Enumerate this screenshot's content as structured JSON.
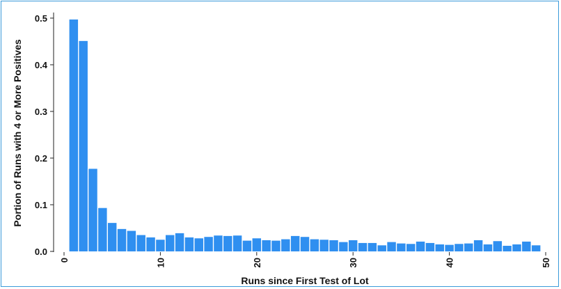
{
  "chart_data": {
    "type": "bar",
    "title": "",
    "xlabel": "Runs since First Test of Lot",
    "ylabel": "Portion of Runs with 4 or More Positives",
    "x": [
      1,
      2,
      3,
      4,
      5,
      6,
      7,
      8,
      9,
      10,
      11,
      12,
      13,
      14,
      15,
      16,
      17,
      18,
      19,
      20,
      21,
      22,
      23,
      24,
      25,
      26,
      27,
      28,
      29,
      30,
      31,
      32,
      33,
      34,
      35,
      36,
      37,
      38,
      39,
      40,
      41,
      42,
      43,
      44,
      45,
      46,
      47,
      48,
      49
    ],
    "values": [
      0.497,
      0.451,
      0.177,
      0.093,
      0.061,
      0.048,
      0.044,
      0.035,
      0.03,
      0.025,
      0.035,
      0.039,
      0.03,
      0.028,
      0.031,
      0.034,
      0.033,
      0.034,
      0.023,
      0.028,
      0.024,
      0.023,
      0.026,
      0.033,
      0.031,
      0.026,
      0.025,
      0.024,
      0.02,
      0.024,
      0.018,
      0.018,
      0.013,
      0.02,
      0.017,
      0.016,
      0.021,
      0.018,
      0.015,
      0.014,
      0.016,
      0.017,
      0.024,
      0.015,
      0.022,
      0.012,
      0.015,
      0.021,
      0.013
    ],
    "xlim": [
      0,
      50
    ],
    "ylim": [
      0,
      0.5
    ],
    "xticks": [
      "0",
      "10",
      "20",
      "30",
      "40",
      "50"
    ],
    "yticks": [
      "0.0",
      "0.1",
      "0.2",
      "0.3",
      "0.4",
      "0.5"
    ],
    "xtick_values": [
      0,
      10,
      20,
      30,
      40,
      50
    ],
    "ytick_values": [
      0,
      0.1,
      0.2,
      0.3,
      0.4,
      0.5
    ],
    "bar_color": "#2f8ff0",
    "grid": false,
    "legend": "none"
  }
}
